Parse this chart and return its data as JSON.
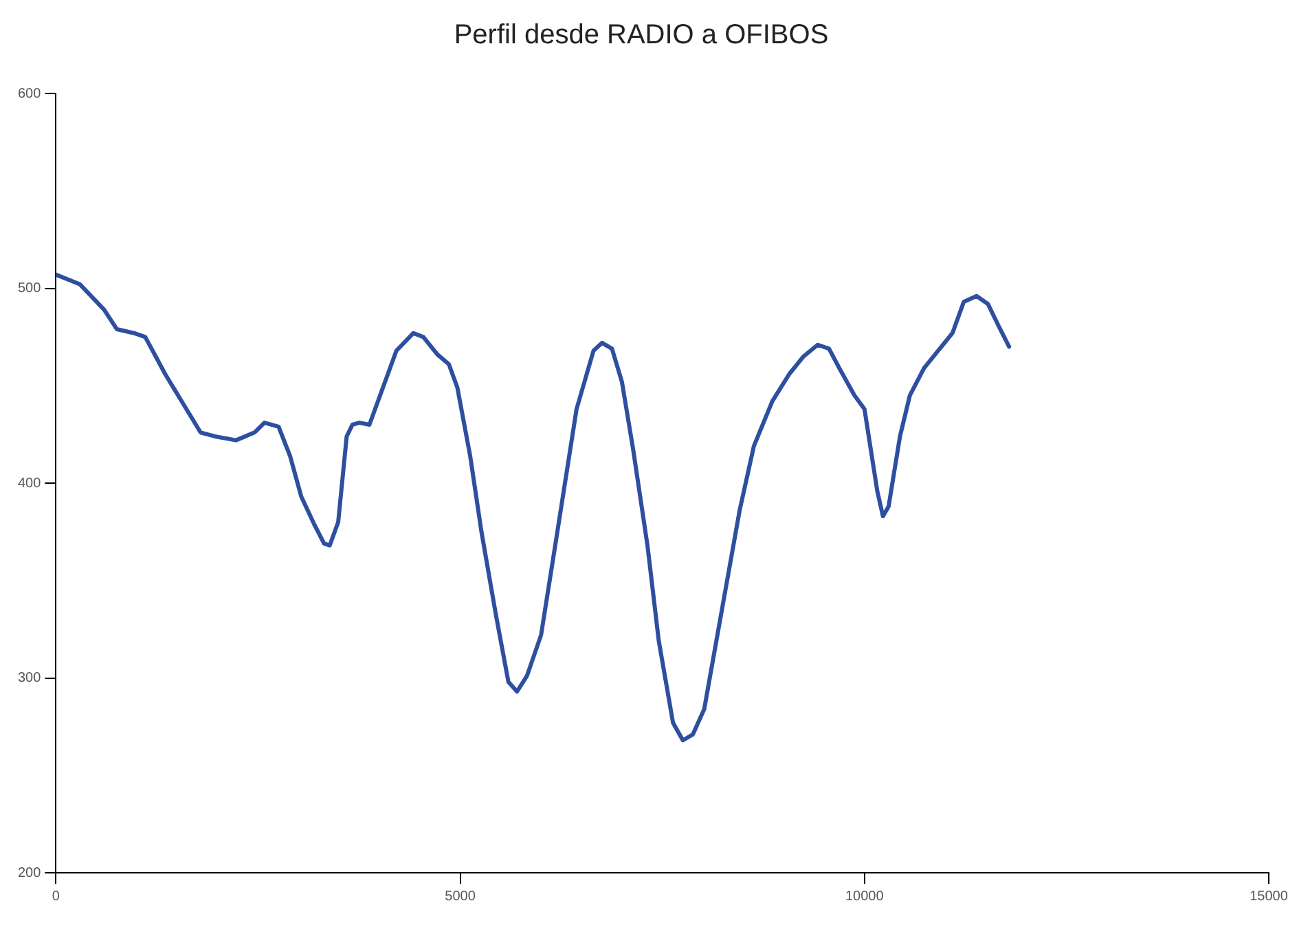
{
  "chart_data": {
    "type": "line",
    "title": "Perfil desde RADIO a OFIBOS",
    "x": [
      0,
      298,
      596,
      754,
      965,
      1105,
      1351,
      1526,
      1789,
      1965,
      2228,
      2456,
      2579,
      2754,
      2895,
      3035,
      3193,
      3316,
      3386,
      3491,
      3596,
      3667,
      3754,
      3877,
      4035,
      4211,
      4421,
      4544,
      4719,
      4860,
      4965,
      5123,
      5263,
      5439,
      5596,
      5702,
      5825,
      6000,
      6175,
      6439,
      6649,
      6754,
      6877,
      7000,
      7140,
      7316,
      7456,
      7632,
      7754,
      7877,
      8018,
      8228,
      8456,
      8632,
      8860,
      9070,
      9246,
      9421,
      9561,
      9702,
      9877,
      10000,
      10158,
      10228,
      10298,
      10439,
      10561,
      10737,
      10912,
      11088,
      11228,
      11386,
      11526,
      11667,
      11789
    ],
    "series": [
      {
        "color": "#2e4fa0",
        "values": [
          507,
          502,
          489,
          479,
          477,
          475,
          456,
          444,
          426,
          424,
          422,
          426,
          431,
          429,
          414,
          393,
          379,
          369,
          368,
          380,
          424,
          430,
          431,
          430,
          448,
          468,
          477,
          475,
          466,
          461,
          449,
          414,
          375,
          333,
          298,
          293,
          301,
          322,
          368,
          438,
          468,
          472,
          469,
          452,
          417,
          368,
          319,
          277,
          268,
          271,
          284,
          333,
          386,
          419,
          442,
          456,
          465,
          471,
          469,
          458,
          445,
          438,
          396,
          383,
          388,
          424,
          445,
          459,
          468,
          477,
          493,
          496,
          492,
          480,
          470
        ]
      }
    ],
    "xlim": [
      0,
      15000
    ],
    "xticks": [
      0,
      5000,
      10000,
      15000
    ],
    "ylim": [
      200,
      600
    ],
    "yticks": [
      200,
      300,
      400,
      500,
      600
    ],
    "grid": false,
    "legend": false,
    "marker": "none",
    "line_style": "solid"
  }
}
